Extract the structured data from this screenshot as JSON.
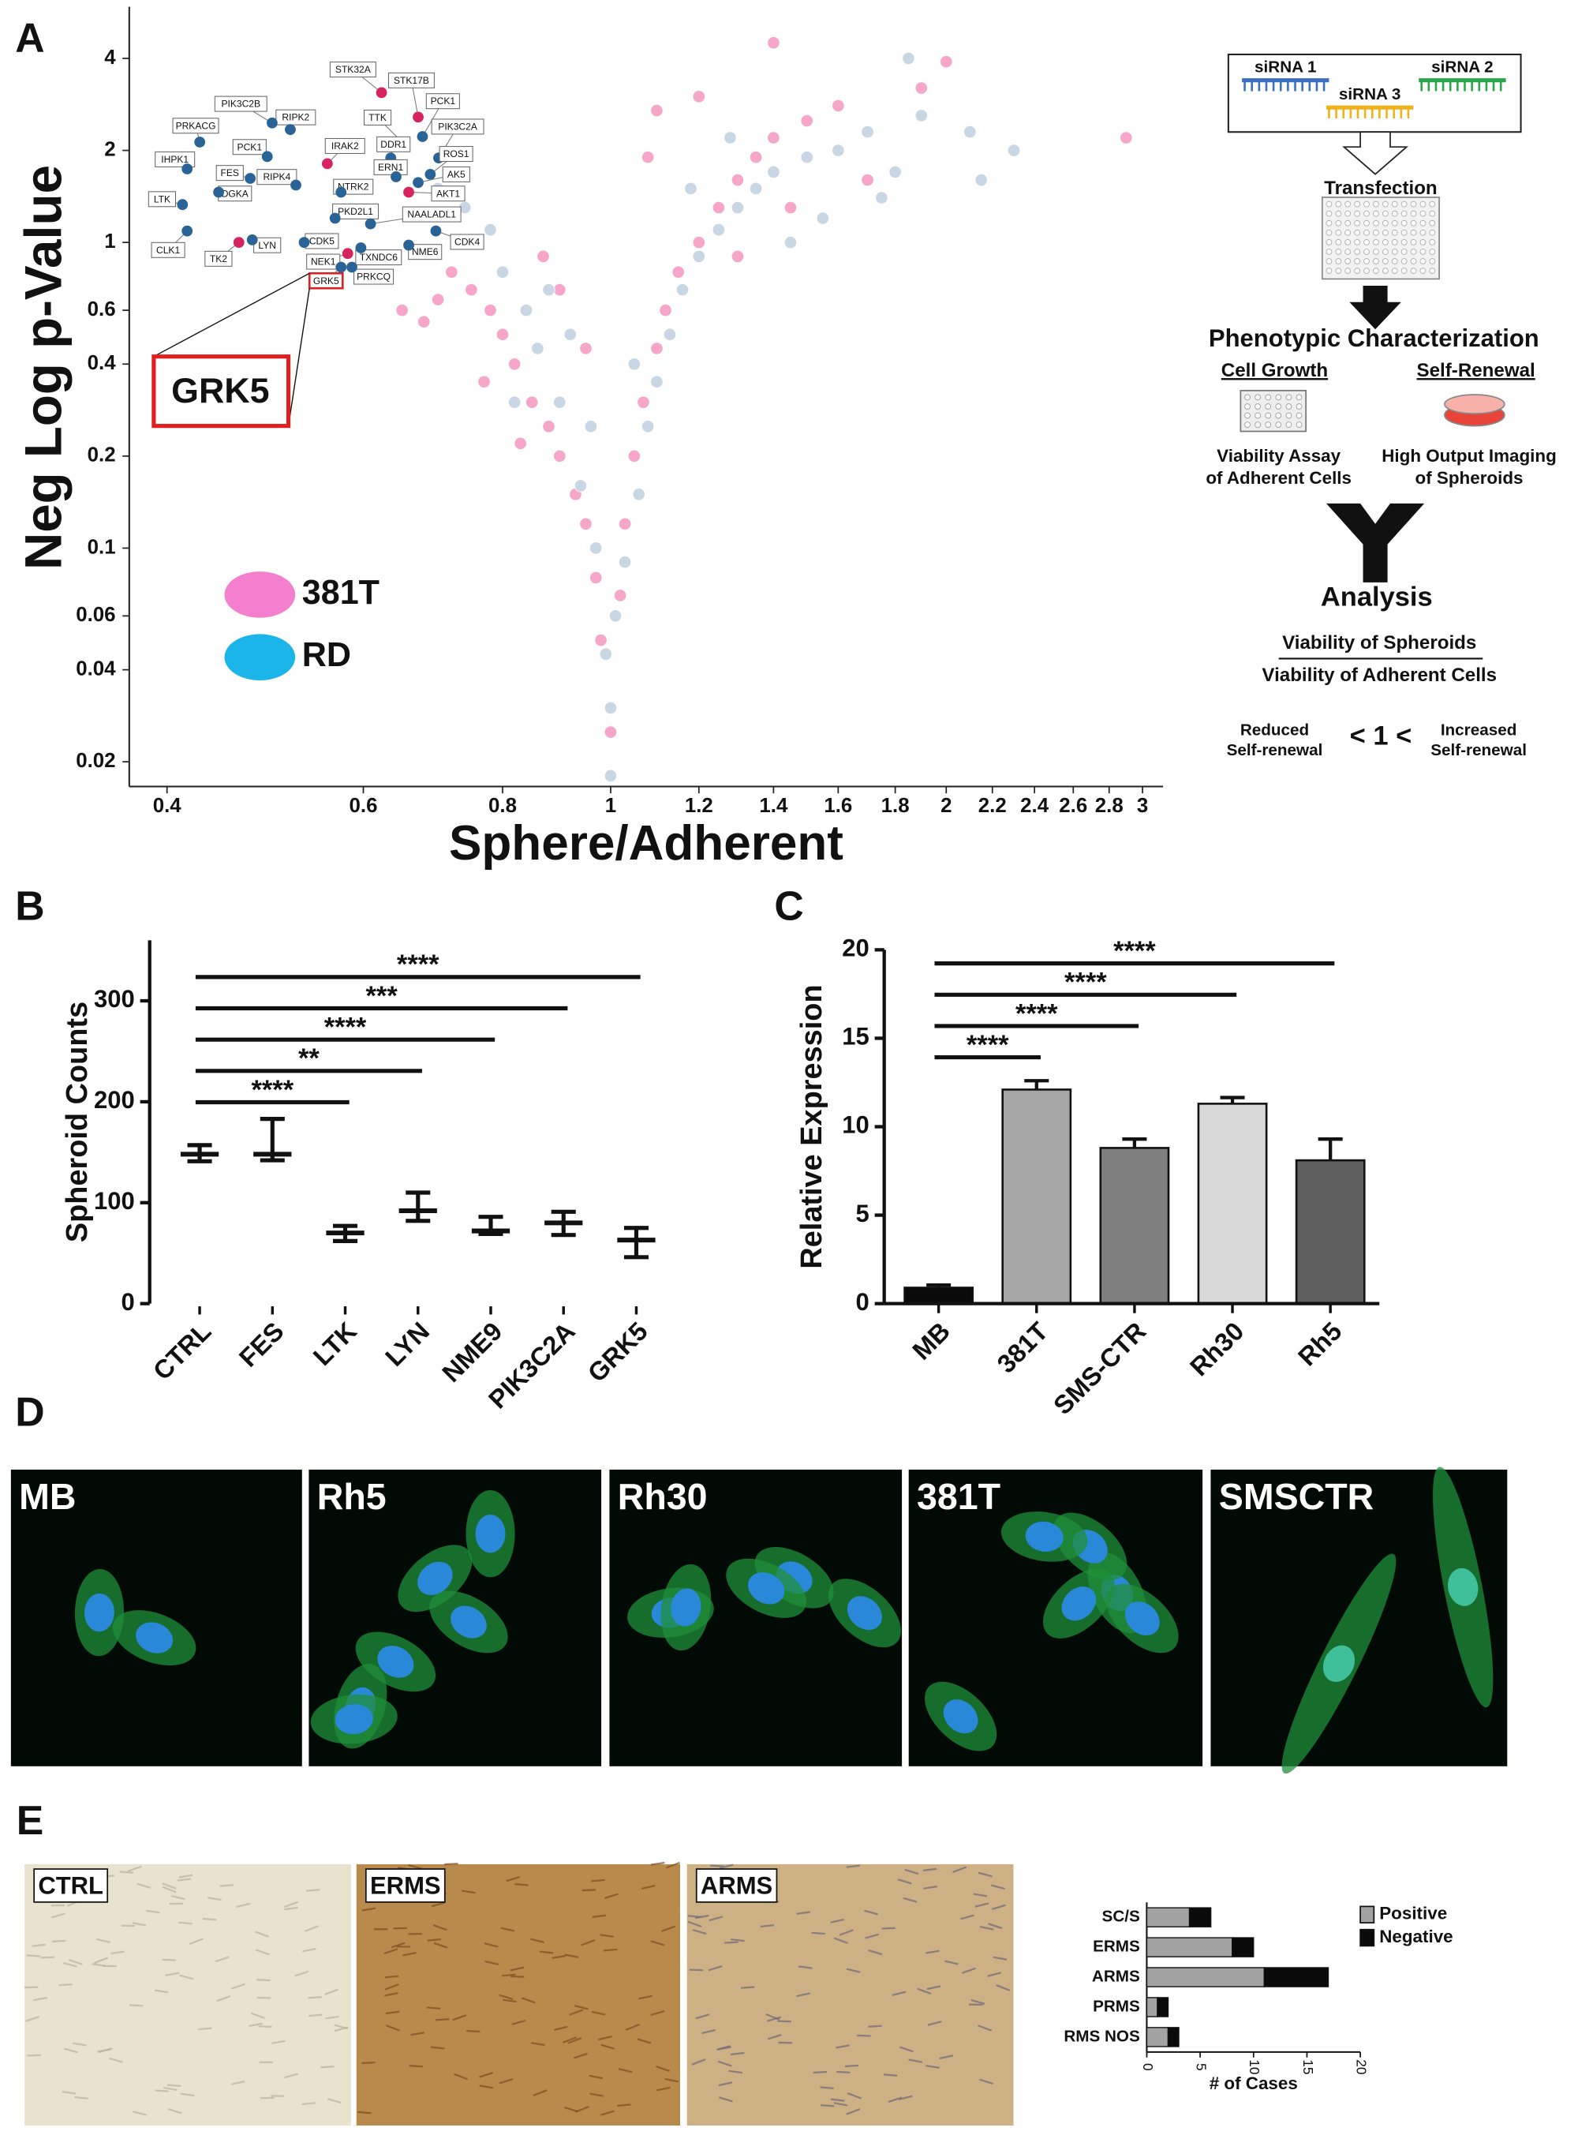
{
  "panel_labels": [
    "A",
    "B",
    "C",
    "D",
    "E"
  ],
  "chart_data": [
    {
      "type": "scatter",
      "xlabel": "Sphere/Adherent",
      "ylabel": "Neg Log p-Value",
      "xscale": "log",
      "yscale": "log",
      "xlim": [
        0.37,
        3.13
      ],
      "ylim": [
        0.0166,
        5.9
      ],
      "xticks": [
        0.4,
        0.6,
        0.8,
        1,
        1.2,
        1.4,
        1.6,
        1.8,
        2,
        2.2,
        2.4,
        2.6,
        2.8,
        3
      ],
      "yticks": [
        0.02,
        0.04,
        0.06,
        0.1,
        0.2,
        0.4,
        0.6,
        1,
        2,
        4
      ],
      "legend": "lower left",
      "series": [
        {
          "name": "381T",
          "color": "#f5a6c9",
          "legend_color": "#f47fcf",
          "x": [
            1.0,
            0.98,
            0.97,
            0.95,
            0.93,
            0.9,
            0.88,
            0.85,
            0.82,
            0.8,
            0.78,
            0.75,
            0.72,
            0.7,
            0.68,
            0.65,
            0.77,
            0.83,
            0.87,
            0.9,
            1.02,
            1.03,
            1.05,
            1.07,
            1.1,
            1.12,
            1.15,
            1.2,
            1.25,
            1.3,
            1.35,
            1.4,
            1.5,
            1.6,
            1.1,
            1.08,
            1.2,
            1.4,
            2.0,
            1.9,
            2.9,
            1.7,
            1.3,
            1.45,
            0.95
          ],
          "y": [
            0.025,
            0.05,
            0.08,
            0.12,
            0.15,
            0.2,
            0.25,
            0.3,
            0.4,
            0.5,
            0.6,
            0.7,
            0.8,
            0.65,
            0.55,
            0.6,
            0.35,
            0.22,
            0.9,
            0.7,
            0.07,
            0.12,
            0.2,
            0.3,
            0.45,
            0.6,
            0.8,
            1.0,
            1.3,
            1.6,
            1.9,
            2.2,
            2.5,
            2.8,
            2.7,
            1.9,
            3.0,
            4.5,
            3.9,
            3.2,
            2.2,
            1.6,
            0.9,
            1.3,
            0.45
          ]
        },
        {
          "name": "RD",
          "color": "#c9d6e3",
          "legend_color": "#1bb5ea",
          "x": [
            1.0,
            1.0,
            0.99,
            1.01,
            0.97,
            1.03,
            0.94,
            1.06,
            0.9,
            1.08,
            0.86,
            1.1,
            0.84,
            1.13,
            0.8,
            1.16,
            0.78,
            1.2,
            0.74,
            1.25,
            0.7,
            1.3,
            1.35,
            1.4,
            1.5,
            1.6,
            1.7,
            1.8,
            1.9,
            1.85,
            2.1,
            2.15,
            2.3,
            1.55,
            1.45,
            1.75,
            0.88,
            0.92,
            1.05,
            0.96,
            0.82,
            1.18,
            1.28
          ],
          "y": [
            0.018,
            0.03,
            0.045,
            0.06,
            0.1,
            0.09,
            0.16,
            0.15,
            0.3,
            0.25,
            0.45,
            0.35,
            0.6,
            0.5,
            0.8,
            0.7,
            1.1,
            0.9,
            1.3,
            1.1,
            1.5,
            1.3,
            1.5,
            1.7,
            1.9,
            2.0,
            2.3,
            1.7,
            2.6,
            4.0,
            2.3,
            1.6,
            2.0,
            1.2,
            1.0,
            1.4,
            0.7,
            0.5,
            0.4,
            0.25,
            0.3,
            1.5,
            2.2
          ]
        }
      ],
      "annotations": [
        {
          "text": "STK32A",
          "x": 0.623,
          "y": 3.09,
          "color": "#d6245f"
        },
        {
          "text": "STK17B",
          "x": 0.672,
          "y": 2.57,
          "color": "#d6245f"
        },
        {
          "text": "PCK1",
          "x": 0.678,
          "y": 2.22,
          "color": "#2a6496"
        },
        {
          "text": "PIK3C2A",
          "x": 0.701,
          "y": 1.89,
          "color": "#2a6496"
        },
        {
          "text": "TTK",
          "x": 0.65,
          "y": 2.13,
          "color": "#2a6496"
        },
        {
          "text": "RIPK2",
          "x": 0.516,
          "y": 2.34,
          "color": "#2a6496"
        },
        {
          "text": "PIK3C2B",
          "x": 0.497,
          "y": 2.46,
          "color": "#2a6496"
        },
        {
          "text": "PRKACG",
          "x": 0.428,
          "y": 2.13,
          "color": "#2a6496"
        },
        {
          "text": "IHPK1",
          "x": 0.417,
          "y": 1.74,
          "color": "#2a6496"
        },
        {
          "text": "PCK1",
          "x": 0.492,
          "y": 1.91,
          "color": "#2a6496"
        },
        {
          "text": "IRAK2",
          "x": 0.557,
          "y": 1.81,
          "color": "#d6245f"
        },
        {
          "text": "DDR1",
          "x": 0.635,
          "y": 1.89,
          "color": "#2a6496"
        },
        {
          "text": "ERN1",
          "x": 0.642,
          "y": 1.64,
          "color": "#2a6496"
        },
        {
          "text": "ROS1",
          "x": 0.689,
          "y": 1.67,
          "color": "#2a6496"
        },
        {
          "text": "AK5",
          "x": 0.672,
          "y": 1.57,
          "color": "#2a6496"
        },
        {
          "text": "AKT1",
          "x": 0.659,
          "y": 1.46,
          "color": "#d6245f"
        },
        {
          "text": "FES",
          "x": 0.475,
          "y": 1.62,
          "color": "#2a6496"
        },
        {
          "text": "RIPK4",
          "x": 0.522,
          "y": 1.54,
          "color": "#2a6496"
        },
        {
          "text": "NTRK2",
          "x": 0.573,
          "y": 1.46,
          "color": "#2a6496"
        },
        {
          "text": "DGKA",
          "x": 0.445,
          "y": 1.46,
          "color": "#2a6496"
        },
        {
          "text": "LTK",
          "x": 0.413,
          "y": 1.33,
          "color": "#2a6496"
        },
        {
          "text": "PKD2L1",
          "x": 0.566,
          "y": 1.2,
          "color": "#2a6496"
        },
        {
          "text": "NAALADL1",
          "x": 0.609,
          "y": 1.15,
          "color": "#2a6496"
        },
        {
          "text": "CDK4",
          "x": 0.697,
          "y": 1.09,
          "color": "#2a6496"
        },
        {
          "text": "NME6",
          "x": 0.659,
          "y": 0.98,
          "color": "#2a6496"
        },
        {
          "text": "CDK5",
          "x": 0.531,
          "y": 1.0,
          "color": "#2a6496"
        },
        {
          "text": "LYN",
          "x": 0.477,
          "y": 1.02,
          "color": "#2a6496"
        },
        {
          "text": "TK2",
          "x": 0.464,
          "y": 1.0,
          "color": "#d6245f"
        },
        {
          "text": "CLK1",
          "x": 0.417,
          "y": 1.09,
          "color": "#2a6496"
        },
        {
          "text": "NEK1",
          "x": 0.581,
          "y": 0.92,
          "color": "#d6245f"
        },
        {
          "text": "TXNDC6",
          "x": 0.597,
          "y": 0.96,
          "color": "#2a6496"
        },
        {
          "text": "PRKCQ",
          "x": 0.586,
          "y": 0.83,
          "color": "#2a6496"
        },
        {
          "text": "GRK5",
          "x": 0.573,
          "y": 0.83,
          "color": "#2a6496",
          "highlight_box": "#e02020"
        }
      ]
    },
    {
      "type": "errorbar",
      "ylabel": "Spheroid Counts",
      "categories": [
        "CTRL",
        "FES",
        "LTK",
        "LYN",
        "NME9",
        "PIK3C2A",
        "GRK5"
      ],
      "values": [
        148,
        148,
        70,
        92,
        72,
        80,
        63
      ],
      "lower": [
        141,
        142,
        62,
        82,
        69,
        68,
        46
      ],
      "upper": [
        157,
        183,
        77,
        110,
        86,
        91,
        75
      ],
      "ylim": [
        0,
        360
      ],
      "yticks": [
        0,
        100,
        200,
        300
      ],
      "comparisons": [
        {
          "from": 0,
          "to": 2,
          "label": "****"
        },
        {
          "from": 0,
          "to": 3,
          "label": "**"
        },
        {
          "from": 0,
          "to": 4,
          "label": "****"
        },
        {
          "from": 0,
          "to": 5,
          "label": "***"
        },
        {
          "from": 0,
          "to": 6,
          "label": "****"
        }
      ]
    },
    {
      "type": "bar",
      "ylabel": "Relative Expression",
      "categories": [
        "MB",
        "381T",
        "SMS-CTR",
        "Rh30",
        "Rh5"
      ],
      "values": [
        0.9,
        12.1,
        8.8,
        11.3,
        8.1
      ],
      "errors": [
        0.15,
        0.5,
        0.5,
        0.35,
        1.2
      ],
      "colors": [
        "#0a0a0a",
        "#a6a6a6",
        "#7f7f7f",
        "#d9d9d9",
        "#5f5f5f"
      ],
      "ylim": [
        0,
        20
      ],
      "yticks": [
        0,
        5,
        10,
        15,
        20
      ],
      "comparisons": [
        {
          "from": 0,
          "to": 1,
          "label": "****"
        },
        {
          "from": 0,
          "to": 2,
          "label": "****"
        },
        {
          "from": 0,
          "to": 3,
          "label": "****"
        },
        {
          "from": 0,
          "to": 4,
          "label": "****"
        }
      ]
    },
    {
      "type": "hbar",
      "stacked": true,
      "xlabel": "# of Cases",
      "categories": [
        "SC/S",
        "ERMS",
        "ARMS",
        "PRMS",
        "RMS NOS"
      ],
      "series": [
        {
          "name": "Positive",
          "color": "#a3a3a3",
          "values": [
            4,
            8,
            11,
            1,
            2
          ]
        },
        {
          "name": "Negative",
          "color": "#0a0a0a",
          "values": [
            2,
            2,
            6,
            1,
            1
          ]
        }
      ],
      "xlim": [
        0,
        20
      ],
      "xticks": [
        0,
        5,
        10,
        15,
        20
      ],
      "legend": "upper right"
    }
  ],
  "workflow": {
    "sirna": [
      "siRNA 1",
      "siRNA 2",
      "siRNA 3"
    ],
    "step1": "Transfection",
    "step2": "Phenotypic Characterization",
    "left_head": "Cell Growth",
    "right_head": "Self-Renewal",
    "left_text": [
      "Viability Assay",
      "of Adherent Cells"
    ],
    "right_text": [
      "High Output Imaging",
      "of Spheroids"
    ],
    "step3": "Analysis",
    "numerator": "Viability of Spheroids",
    "denominator": "Viability of Adherent Cells",
    "low": [
      "Reduced",
      "Self-renewal"
    ],
    "threshold": "< 1 <",
    "high": [
      "Increased",
      "Self-renewal"
    ]
  },
  "micrographs": {
    "fluorescence": [
      "MB",
      "Rh5",
      "Rh30",
      "381T",
      "SMSCTR"
    ],
    "ihc": [
      "CTRL",
      "ERMS",
      "ARMS"
    ]
  }
}
